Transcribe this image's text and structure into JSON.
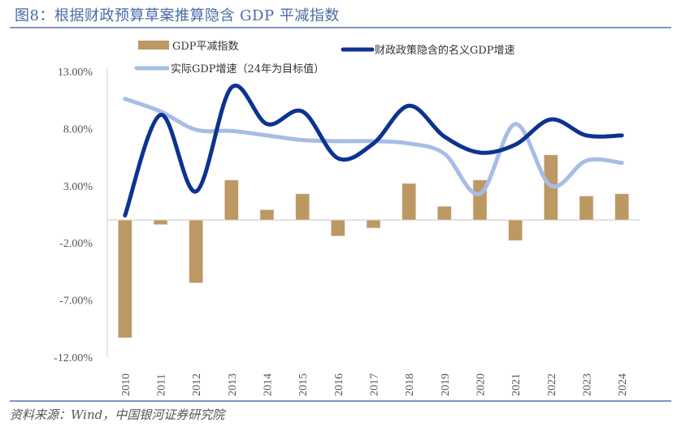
{
  "header": {
    "title": "图8：根据财政预算草案推算隐含 GDP 平减指数"
  },
  "footer": {
    "source": "资料来源：Wind，中国银河证券研究院"
  },
  "colors": {
    "bar": "#bc9865",
    "nominal_line": "#0c3391",
    "real_line": "#a7bde6",
    "axis": "#d9d9d9",
    "rule": "#7f96c6"
  },
  "chart_data": {
    "type": "bar+line",
    "title": "根据财政预算草案推算隐含 GDP 平减指数",
    "xlabel": "",
    "ylabel": "",
    "ylim": [
      -12,
      13
    ],
    "yticks": [
      13,
      8,
      3,
      -2,
      -7,
      -12
    ],
    "ytick_labels": [
      "13.00%",
      "8.00%",
      "3.00%",
      "-2.00%",
      "-7.00%",
      "-12.00%"
    ],
    "categories": [
      "2010",
      "2011",
      "2012",
      "2013",
      "2014",
      "2015",
      "2016",
      "2017",
      "2018",
      "2019",
      "2020",
      "2021",
      "2022",
      "2023",
      "2024"
    ],
    "legend_position": "top",
    "grid": false,
    "series": [
      {
        "name": "GDP平减指数",
        "kind": "bar",
        "values": [
          -10.3,
          -0.4,
          -5.5,
          3.5,
          0.9,
          2.3,
          -1.4,
          -0.7,
          3.2,
          1.2,
          3.5,
          -1.8,
          5.7,
          2.1,
          2.3
        ]
      },
      {
        "name": "财政政策隐含的名义GDP增速",
        "kind": "line",
        "values": [
          0.4,
          9.2,
          2.5,
          11.6,
          8.4,
          9.5,
          5.4,
          6.7,
          10.0,
          7.3,
          5.9,
          6.6,
          8.8,
          7.4,
          7.4
        ]
      },
      {
        "name": "实际GDP增速（24年为目标值）",
        "kind": "line",
        "values": [
          10.6,
          9.5,
          7.9,
          7.8,
          7.4,
          7.0,
          6.9,
          6.9,
          6.7,
          5.8,
          2.3,
          8.4,
          3.0,
          5.2,
          5.0
        ]
      }
    ]
  }
}
